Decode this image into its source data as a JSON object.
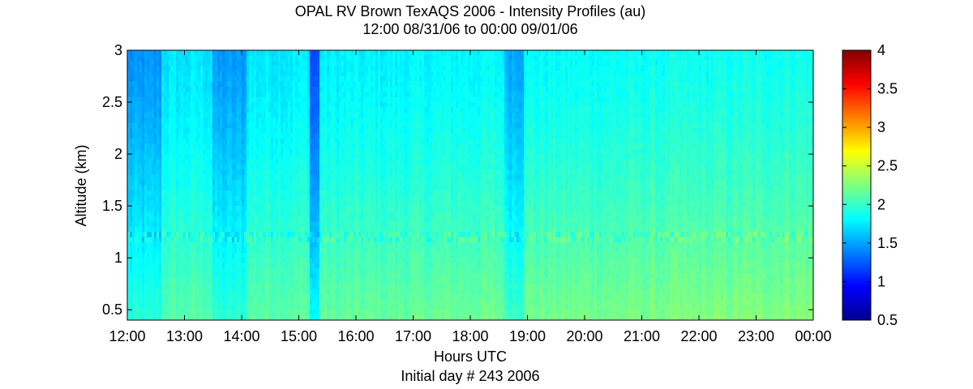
{
  "chart_data": {
    "type": "heatmap",
    "title": "OPAL RV Brown TexAQS 2006 - Intensity Profiles (au)",
    "subtitle": "12:00 08/31/06 to 00:00 09/01/06",
    "xlabel": "Hours UTC",
    "xlabel2": "Initial day # 243  2006",
    "ylabel": "Altitude (km)",
    "x_ticks": [
      "12:00",
      "13:00",
      "14:00",
      "15:00",
      "16:00",
      "17:00",
      "18:00",
      "19:00",
      "20:00",
      "21:00",
      "22:00",
      "23:00",
      "00:00"
    ],
    "x_range_hours": [
      12,
      24
    ],
    "y_ticks": [
      "0.5",
      "1",
      "1.5",
      "2",
      "2.5",
      "3"
    ],
    "y_tick_values": [
      0.5,
      1,
      1.5,
      2,
      2.5,
      3
    ],
    "ylim": [
      0.4,
      3.0
    ],
    "colorbar": {
      "ticks": [
        "0.5",
        "1",
        "1.5",
        "2",
        "2.5",
        "3",
        "3.5",
        "4"
      ],
      "tick_values": [
        0.5,
        1,
        1.5,
        2,
        2.5,
        3,
        3.5,
        4
      ],
      "range": [
        0.5,
        4
      ],
      "colormap": "jet"
    },
    "features": {
      "low_intensity_bands_hours": [
        [
          12.0,
          12.6
        ],
        [
          13.5,
          14.1
        ],
        [
          15.2,
          15.35
        ],
        [
          18.6,
          18.95
        ]
      ],
      "layer_altitude_km": 1.18,
      "typical_high_altitude_value": 1.7,
      "typical_low_altitude_value": 2.1
    }
  }
}
